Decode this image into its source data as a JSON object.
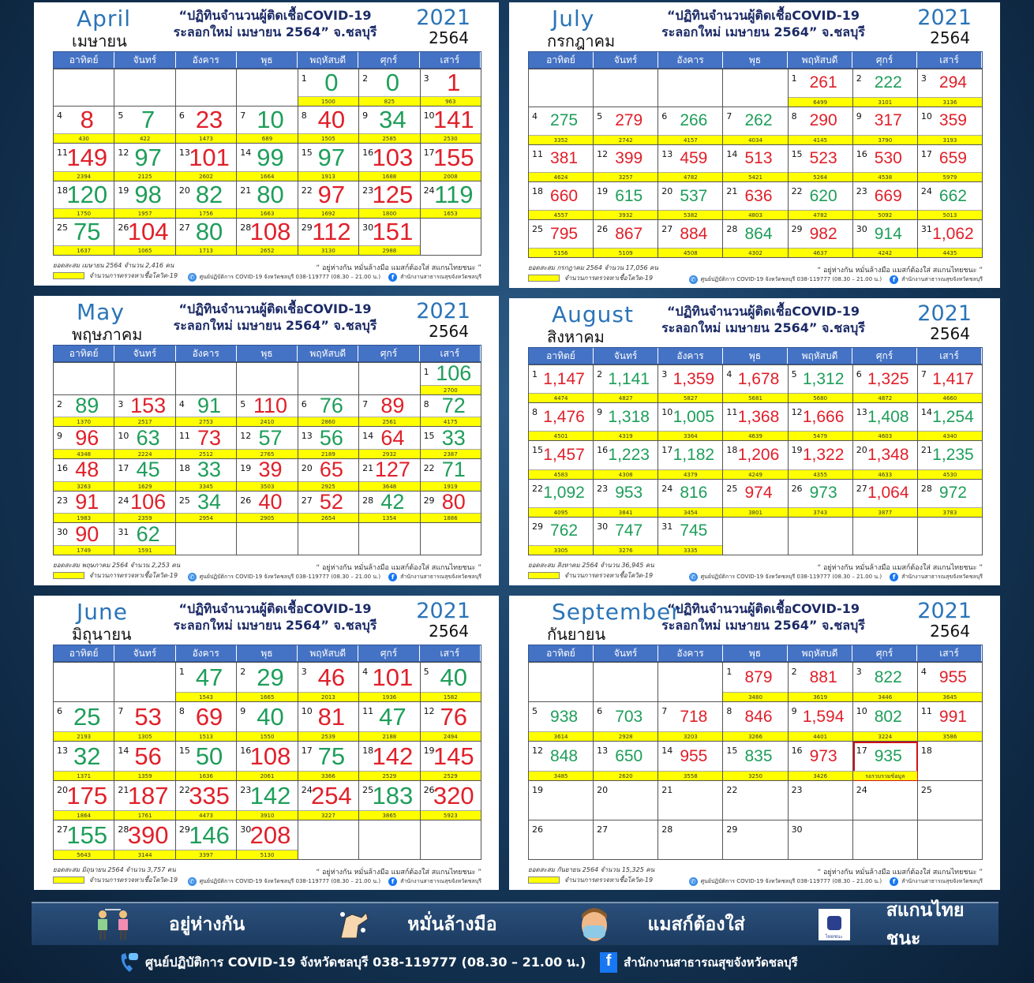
{
  "weekdays": [
    "อาทิตย์",
    "จันทร์",
    "อังคาร",
    "พุธ",
    "พฤหัสบดี",
    "ศุกร์",
    "เสาร์"
  ],
  "title_line1": "“ปฏิทินจำนวนผู้ติดเชื้อCOVID-19",
  "title_line2": "ระลอกใหม่ เมษายน 2564” จ.ชลบุรี",
  "year_en": "2021",
  "year_th": "2564",
  "legend_label": "จำนวนการตรวจหาเชื้อโควิด-19",
  "slogan": "“ อยู่ห่างกัน หมั่นล้างมือ แมสก์ต้องใส่ สแกนไทยชนะ ”",
  "hotline": "ศูนย์ปฏิบัติการ COVID-19 จังหวัดชลบุรี 038-119777 (08.30 – 21.00 น.)",
  "office": "สำนักงานสาธารณสุขจังหวัดชลบุรี",
  "colors": {
    "up": "#e0202a",
    "down": "#1e9e5a",
    "header": "#4472c4",
    "tests_bar": "#ffff00",
    "pending_border": "#d0101a"
  },
  "months": [
    {
      "id": "april",
      "name_en": "April",
      "name_th": "เมษายน",
      "start_weekday": 4,
      "total": "ยอดสะสม เมษายน 2564 จำนวน 2,416 คน",
      "days": [
        [
          "0",
          "1500",
          "g"
        ],
        [
          "0",
          "825",
          "g"
        ],
        [
          "1",
          "963",
          "r"
        ],
        [
          "8",
          "430",
          "r"
        ],
        [
          "7",
          "422",
          "g"
        ],
        [
          "23",
          "1473",
          "r"
        ],
        [
          "10",
          "689",
          "g"
        ],
        [
          "40",
          "1505",
          "r"
        ],
        [
          "34",
          "2585",
          "g"
        ],
        [
          "141",
          "2530",
          "r"
        ],
        [
          "149",
          "2394",
          "r"
        ],
        [
          "97",
          "2125",
          "g"
        ],
        [
          "101",
          "2602",
          "r"
        ],
        [
          "99",
          "1664",
          "g"
        ],
        [
          "97",
          "1913",
          "g"
        ],
        [
          "103",
          "1688",
          "r"
        ],
        [
          "155",
          "2008",
          "r"
        ],
        [
          "120",
          "1750",
          "g"
        ],
        [
          "98",
          "1957",
          "g"
        ],
        [
          "82",
          "1756",
          "g"
        ],
        [
          "80",
          "1663",
          "g"
        ],
        [
          "97",
          "1692",
          "r"
        ],
        [
          "125",
          "1800",
          "r"
        ],
        [
          "119",
          "1653",
          "g"
        ],
        [
          "75",
          "1637",
          "g"
        ],
        [
          "104",
          "1065",
          "r"
        ],
        [
          "80",
          "1713",
          "g"
        ],
        [
          "108",
          "2652",
          "r"
        ],
        [
          "112",
          "3130",
          "r"
        ],
        [
          "151",
          "2988",
          "r"
        ]
      ]
    },
    {
      "id": "july",
      "name_en": "July",
      "name_th": "กรกฎาคม",
      "start_weekday": 4,
      "total": "ยอดสะสม กรกฎาคม 2564 จำนวน 17,056 คน",
      "days": [
        [
          "261",
          "6499",
          "r"
        ],
        [
          "222",
          "3101",
          "g"
        ],
        [
          "294",
          "3136",
          "r"
        ],
        [
          "275",
          "3352",
          "g"
        ],
        [
          "279",
          "2742",
          "r"
        ],
        [
          "266",
          "4157",
          "g"
        ],
        [
          "262",
          "4034",
          "g"
        ],
        [
          "290",
          "4145",
          "r"
        ],
        [
          "317",
          "3790",
          "r"
        ],
        [
          "359",
          "3193",
          "r"
        ],
        [
          "381",
          "4624",
          "r"
        ],
        [
          "399",
          "3257",
          "r"
        ],
        [
          "459",
          "4782",
          "r"
        ],
        [
          "513",
          "5421",
          "r"
        ],
        [
          "523",
          "5264",
          "r"
        ],
        [
          "530",
          "4538",
          "r"
        ],
        [
          "659",
          "5979",
          "r"
        ],
        [
          "660",
          "4557",
          "r"
        ],
        [
          "615",
          "3932",
          "g"
        ],
        [
          "537",
          "5382",
          "g"
        ],
        [
          "636",
          "4803",
          "r"
        ],
        [
          "620",
          "4782",
          "g"
        ],
        [
          "669",
          "5092",
          "r"
        ],
        [
          "662",
          "5013",
          "g"
        ],
        [
          "795",
          "5156",
          "r"
        ],
        [
          "867",
          "5109",
          "r"
        ],
        [
          "884",
          "4508",
          "r"
        ],
        [
          "864",
          "4302",
          "g"
        ],
        [
          "982",
          "4637",
          "r"
        ],
        [
          "914",
          "4242",
          "g"
        ],
        [
          "1,062",
          "4435",
          "r"
        ]
      ]
    },
    {
      "id": "may",
      "name_en": "May",
      "name_th": "พฤษภาคม",
      "start_weekday": 6,
      "total": "ยอดสะสม พฤษภาคม 2564 จำนวน 2,253 คน",
      "days": [
        [
          "106",
          "2700",
          "g"
        ],
        [
          "89",
          "1370",
          "g"
        ],
        [
          "153",
          "2517",
          "r"
        ],
        [
          "91",
          "2753",
          "g"
        ],
        [
          "110",
          "2410",
          "r"
        ],
        [
          "76",
          "2860",
          "g"
        ],
        [
          "89",
          "2561",
          "r"
        ],
        [
          "72",
          "4175",
          "g"
        ],
        [
          "96",
          "4348",
          "r"
        ],
        [
          "63",
          "2224",
          "g"
        ],
        [
          "73",
          "2512",
          "r"
        ],
        [
          "57",
          "2765",
          "g"
        ],
        [
          "56",
          "2189",
          "g"
        ],
        [
          "64",
          "2932",
          "r"
        ],
        [
          "33",
          "2387",
          "g"
        ],
        [
          "48",
          "3263",
          "r"
        ],
        [
          "45",
          "1629",
          "g"
        ],
        [
          "33",
          "3345",
          "g"
        ],
        [
          "39",
          "3503",
          "r"
        ],
        [
          "65",
          "2925",
          "r"
        ],
        [
          "127",
          "3648",
          "r"
        ],
        [
          "71",
          "1919",
          "g"
        ],
        [
          "91",
          "1983",
          "r"
        ],
        [
          "106",
          "2359",
          "r"
        ],
        [
          "34",
          "2954",
          "g"
        ],
        [
          "40",
          "2905",
          "r"
        ],
        [
          "52",
          "2654",
          "r"
        ],
        [
          "42",
          "1354",
          "g"
        ],
        [
          "80",
          "1886",
          "r"
        ],
        [
          "90",
          "1749",
          "r"
        ],
        [
          "62",
          "1591",
          "g"
        ]
      ]
    },
    {
      "id": "august",
      "name_en": "August",
      "name_th": "สิงหาคม",
      "start_weekday": 0,
      "total": "ยอดสะสม สิงหาคม 2564 จำนวน 36,945 คน",
      "days": [
        [
          "1,147",
          "4474",
          "r"
        ],
        [
          "1,141",
          "4827",
          "g"
        ],
        [
          "1,359",
          "5827",
          "r"
        ],
        [
          "1,678",
          "5681",
          "r"
        ],
        [
          "1,312",
          "5680",
          "g"
        ],
        [
          "1,325",
          "4872",
          "r"
        ],
        [
          "1,417",
          "4660",
          "r"
        ],
        [
          "1,476",
          "4501",
          "r"
        ],
        [
          "1,318",
          "4319",
          "g"
        ],
        [
          "1,005",
          "3364",
          "g"
        ],
        [
          "1,368",
          "4639",
          "r"
        ],
        [
          "1,666",
          "5479",
          "r"
        ],
        [
          "1,408",
          "4603",
          "g"
        ],
        [
          "1,254",
          "4340",
          "g"
        ],
        [
          "1,457",
          "4583",
          "r"
        ],
        [
          "1,223",
          "4308",
          "g"
        ],
        [
          "1,182",
          "4379",
          "g"
        ],
        [
          "1,206",
          "4249",
          "r"
        ],
        [
          "1,322",
          "4355",
          "r"
        ],
        [
          "1,348",
          "4633",
          "r"
        ],
        [
          "1,235",
          "4530",
          "g"
        ],
        [
          "1,092",
          "4095",
          "g"
        ],
        [
          "953",
          "3841",
          "g"
        ],
        [
          "816",
          "3454",
          "g"
        ],
        [
          "974",
          "3801",
          "r"
        ],
        [
          "973",
          "3743",
          "g"
        ],
        [
          "1,064",
          "3877",
          "r"
        ],
        [
          "972",
          "3783",
          "g"
        ],
        [
          "762",
          "3305",
          "g"
        ],
        [
          "747",
          "3276",
          "g"
        ],
        [
          "745",
          "3335",
          "g"
        ]
      ]
    },
    {
      "id": "june",
      "name_en": "June",
      "name_th": "มิถุนายน",
      "start_weekday": 2,
      "total": "ยอดสะสม มิถุนายน 2564 จำนวน 3,757 คน",
      "days": [
        [
          "47",
          "1543",
          "g"
        ],
        [
          "29",
          "1665",
          "g"
        ],
        [
          "46",
          "2013",
          "r"
        ],
        [
          "101",
          "1936",
          "r"
        ],
        [
          "40",
          "1582",
          "g"
        ],
        [
          "25",
          "2193",
          "g"
        ],
        [
          "53",
          "1305",
          "r"
        ],
        [
          "69",
          "1513",
          "r"
        ],
        [
          "40",
          "1550",
          "g"
        ],
        [
          "81",
          "2539",
          "r"
        ],
        [
          "47",
          "2188",
          "g"
        ],
        [
          "76",
          "2494",
          "r"
        ],
        [
          "32",
          "1371",
          "g"
        ],
        [
          "56",
          "1359",
          "r"
        ],
        [
          "50",
          "1636",
          "g"
        ],
        [
          "108",
          "2061",
          "r"
        ],
        [
          "75",
          "3366",
          "g"
        ],
        [
          "142",
          "2529",
          "r"
        ],
        [
          "145",
          "2529",
          "r"
        ],
        [
          "175",
          "1864",
          "r"
        ],
        [
          "187",
          "1761",
          "r"
        ],
        [
          "335",
          "4473",
          "r"
        ],
        [
          "142",
          "3910",
          "g"
        ],
        [
          "254",
          "3227",
          "r"
        ],
        [
          "183",
          "3865",
          "g"
        ],
        [
          "320",
          "5923",
          "r"
        ],
        [
          "155",
          "5643",
          "g"
        ],
        [
          "390",
          "3144",
          "r"
        ],
        [
          "146",
          "3397",
          "g"
        ],
        [
          "208",
          "5130",
          "r"
        ]
      ]
    },
    {
      "id": "september",
      "name_en": "September",
      "name_th": "กันยายน",
      "start_weekday": 3,
      "total": "ยอดสะสม กันยายน 2564 จำนวน 15,325 คน",
      "pending_day": 17,
      "days": [
        [
          "879",
          "3480",
          "r"
        ],
        [
          "881",
          "3619",
          "r"
        ],
        [
          "822",
          "3446",
          "g"
        ],
        [
          "955",
          "3645",
          "r"
        ],
        [
          "938",
          "3614",
          "g"
        ],
        [
          "703",
          "2928",
          "g"
        ],
        [
          "718",
          "3203",
          "r"
        ],
        [
          "846",
          "3266",
          "r"
        ],
        [
          "1,594",
          "4401",
          "r"
        ],
        [
          "802",
          "3224",
          "g"
        ],
        [
          "991",
          "3586",
          "r"
        ],
        [
          "848",
          "3485",
          "g"
        ],
        [
          "650",
          "2620",
          "g"
        ],
        [
          "955",
          "3558",
          "r"
        ],
        [
          "835",
          "3250",
          "g"
        ],
        [
          "973",
          "3426",
          "r"
        ],
        [
          "935",
          "รอรวบรวมข้อมูล",
          "g"
        ],
        [
          "",
          "",
          ""
        ],
        [
          "",
          "",
          ""
        ],
        [
          "",
          "",
          ""
        ],
        [
          "",
          "",
          ""
        ],
        [
          "",
          "",
          ""
        ],
        [
          "",
          "",
          ""
        ],
        [
          "",
          "",
          ""
        ],
        [
          "",
          "",
          ""
        ],
        [
          "",
          "",
          ""
        ],
        [
          "",
          "",
          ""
        ],
        [
          "",
          "",
          ""
        ],
        [
          "",
          "",
          ""
        ],
        [
          "",
          "",
          ""
        ]
      ]
    }
  ],
  "banner": {
    "items": [
      {
        "label": "อยู่ห่างกัน",
        "icon": "social-distance-icon"
      },
      {
        "label": "หมั่นล้างมือ",
        "icon": "hand-wash-icon"
      },
      {
        "label": "แมสก์ต้องใส่",
        "icon": "face-mask-icon"
      },
      {
        "label": "สแกนไทยชนะ",
        "icon": "thaichana-icon",
        "icon_text": "ไทยชนะ"
      }
    ]
  }
}
